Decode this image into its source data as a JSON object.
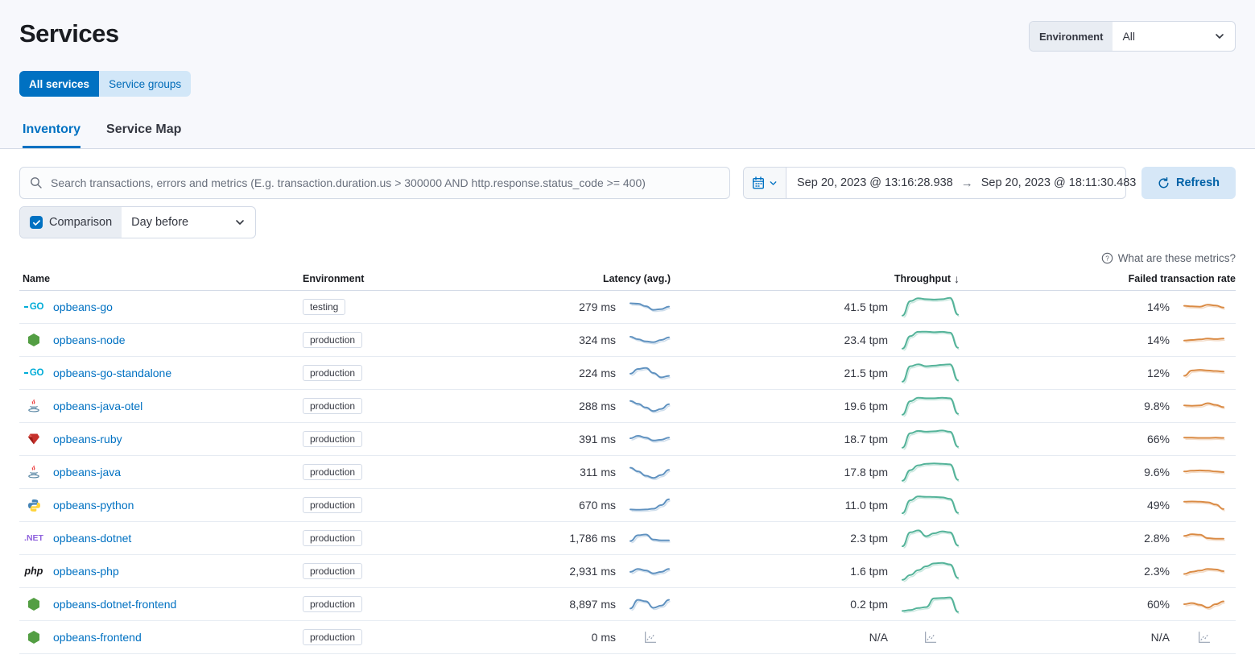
{
  "header": {
    "title": "Services",
    "environment_label": "Environment",
    "environment_value": "All",
    "toggle": {
      "all_services": "All services",
      "service_groups": "Service groups"
    },
    "tabs": [
      {
        "label": "Inventory",
        "active": true
      },
      {
        "label": "Service Map",
        "active": false
      }
    ]
  },
  "controls": {
    "search_placeholder": "Search transactions, errors and metrics (E.g. transaction.duration.us > 300000 AND http.response.status_code >= 400)",
    "date_start": "Sep 20, 2023 @ 13:16:28.938",
    "date_end": "Sep 20, 2023 @ 18:11:30.483",
    "refresh_label": "Refresh",
    "comparison_label": "Comparison",
    "comparison_checked": true,
    "comparison_value": "Day before"
  },
  "metrics_link": "What are these metrics?",
  "icons": {
    "sort_desc": "↓",
    "arrow_right": "→"
  },
  "colors": {
    "primary": "#0071c2",
    "link": "#0071c2",
    "latency_spark": "#6092C0",
    "throughput_spark": "#54B399",
    "failed_spark": "#DA8B45",
    "go_cyan": "#00acd7",
    "node_green": "#539e43",
    "dotnet_purple": "#8f62dd",
    "ruby_red": "#c6302b"
  },
  "table": {
    "columns": [
      "Name",
      "Environment",
      "Latency (avg.)",
      "Throughput",
      "Failed transaction rate"
    ],
    "sorted_column": "Throughput",
    "sort_direction": "desc",
    "rows": [
      {
        "name": "opbeans-go",
        "icon": "go",
        "env": "testing",
        "latency": "279 ms",
        "latency_trend": [
          0.75,
          0.72,
          0.55,
          0.3,
          0.35,
          0.52
        ],
        "throughput": "41.5 tpm",
        "throughput_trend": [
          0.05,
          0.8,
          0.95,
          0.9,
          0.88,
          0.9,
          0.97,
          0.1
        ],
        "failed": "14%",
        "failed_trend": [
          0.6,
          0.55,
          0.52,
          0.7,
          0.62,
          0.45
        ]
      },
      {
        "name": "opbeans-node",
        "icon": "node",
        "env": "production",
        "latency": "324 ms",
        "latency_trend": [
          0.72,
          0.55,
          0.4,
          0.35,
          0.5,
          0.68
        ],
        "throughput": "23.4 tpm",
        "throughput_trend": [
          0.05,
          0.7,
          0.92,
          0.93,
          0.9,
          0.92,
          0.88,
          0.1
        ],
        "failed": "14%",
        "failed_trend": [
          0.45,
          0.5,
          0.55,
          0.62,
          0.58,
          0.62
        ]
      },
      {
        "name": "opbeans-go-standalone",
        "icon": "go",
        "env": "production",
        "latency": "224 ms",
        "latency_trend": [
          0.45,
          0.78,
          0.85,
          0.5,
          0.2,
          0.3
        ],
        "throughput": "21.5 tpm",
        "throughput_trend": [
          0.05,
          0.85,
          0.95,
          0.85,
          0.88,
          0.92,
          0.95,
          0.12
        ],
        "failed": "12%",
        "failed_trend": [
          0.25,
          0.72,
          0.78,
          0.72,
          0.68,
          0.62
        ]
      },
      {
        "name": "opbeans-java-otel",
        "icon": "java",
        "env": "production",
        "latency": "288 ms",
        "latency_trend": [
          0.85,
          0.65,
          0.4,
          0.15,
          0.3,
          0.62
        ],
        "throughput": "19.6 tpm",
        "throughput_trend": [
          0.05,
          0.75,
          0.93,
          0.9,
          0.9,
          0.93,
          0.9,
          0.1
        ],
        "failed": "9.8%",
        "failed_trend": [
          0.55,
          0.52,
          0.55,
          0.75,
          0.6,
          0.4
        ]
      },
      {
        "name": "opbeans-ruby",
        "icon": "ruby",
        "env": "production",
        "latency": "391 ms",
        "latency_trend": [
          0.55,
          0.72,
          0.6,
          0.4,
          0.45,
          0.6
        ],
        "throughput": "18.7 tpm",
        "throughput_trend": [
          0.05,
          0.8,
          0.92,
          0.88,
          0.9,
          0.94,
          0.88,
          0.1
        ],
        "failed": "66%",
        "failed_trend": [
          0.62,
          0.62,
          0.6,
          0.6,
          0.62,
          0.6
        ]
      },
      {
        "name": "opbeans-java",
        "icon": "java",
        "env": "production",
        "latency": "311 ms",
        "latency_trend": [
          0.8,
          0.55,
          0.25,
          0.1,
          0.3,
          0.65
        ],
        "throughput": "17.8 tpm",
        "throughput_trend": [
          0.05,
          0.6,
          0.85,
          0.93,
          0.95,
          0.93,
          0.9,
          0.1
        ],
        "failed": "9.6%",
        "failed_trend": [
          0.55,
          0.62,
          0.65,
          0.62,
          0.55,
          0.5
        ]
      },
      {
        "name": "opbeans-python",
        "icon": "python",
        "env": "production",
        "latency": "670 ms",
        "latency_trend": [
          0.2,
          0.18,
          0.2,
          0.25,
          0.5,
          0.9
        ],
        "throughput": "11.0 tpm",
        "throughput_trend": [
          0.08,
          0.75,
          0.95,
          0.93,
          0.92,
          0.9,
          0.82,
          0.1
        ],
        "failed": "49%",
        "failed_trend": [
          0.8,
          0.82,
          0.8,
          0.75,
          0.55,
          0.15
        ]
      },
      {
        "name": "opbeans-dotnet",
        "icon": "dotnet",
        "env": "production",
        "latency": "1,786 ms",
        "latency_trend": [
          0.3,
          0.7,
          0.75,
          0.4,
          0.35,
          0.35
        ],
        "throughput": "2.3 tpm",
        "throughput_trend": [
          0.08,
          0.8,
          0.9,
          0.6,
          0.75,
          0.85,
          0.8,
          0.12
        ],
        "failed": "2.8%",
        "failed_trend": [
          0.7,
          0.85,
          0.8,
          0.5,
          0.45,
          0.45
        ]
      },
      {
        "name": "opbeans-php",
        "icon": "php",
        "env": "production",
        "latency": "2,931 ms",
        "latency_trend": [
          0.45,
          0.65,
          0.55,
          0.35,
          0.45,
          0.65
        ],
        "throughput": "1.6 tpm",
        "throughput_trend": [
          0.05,
          0.3,
          0.55,
          0.75,
          0.9,
          0.93,
          0.85,
          0.15
        ],
        "failed": "2.3%",
        "failed_trend": [
          0.25,
          0.45,
          0.55,
          0.7,
          0.65,
          0.5
        ]
      },
      {
        "name": "opbeans-dotnet-frontend",
        "icon": "node",
        "env": "production",
        "latency": "8,897 ms",
        "latency_trend": [
          0.2,
          0.8,
          0.7,
          0.25,
          0.4,
          0.8
        ],
        "throughput": "0.2 tpm",
        "throughput_trend": [
          0.15,
          0.2,
          0.3,
          0.35,
          0.8,
          0.82,
          0.85,
          0.1
        ],
        "failed": "60%",
        "failed_trend": [
          0.5,
          0.6,
          0.45,
          0.2,
          0.5,
          0.75
        ]
      },
      {
        "name": "opbeans-frontend",
        "icon": "node",
        "env": "production",
        "latency": "0 ms",
        "latency_trend": null,
        "throughput": "N/A",
        "throughput_trend": null,
        "failed": "N/A",
        "failed_trend": null
      }
    ]
  }
}
